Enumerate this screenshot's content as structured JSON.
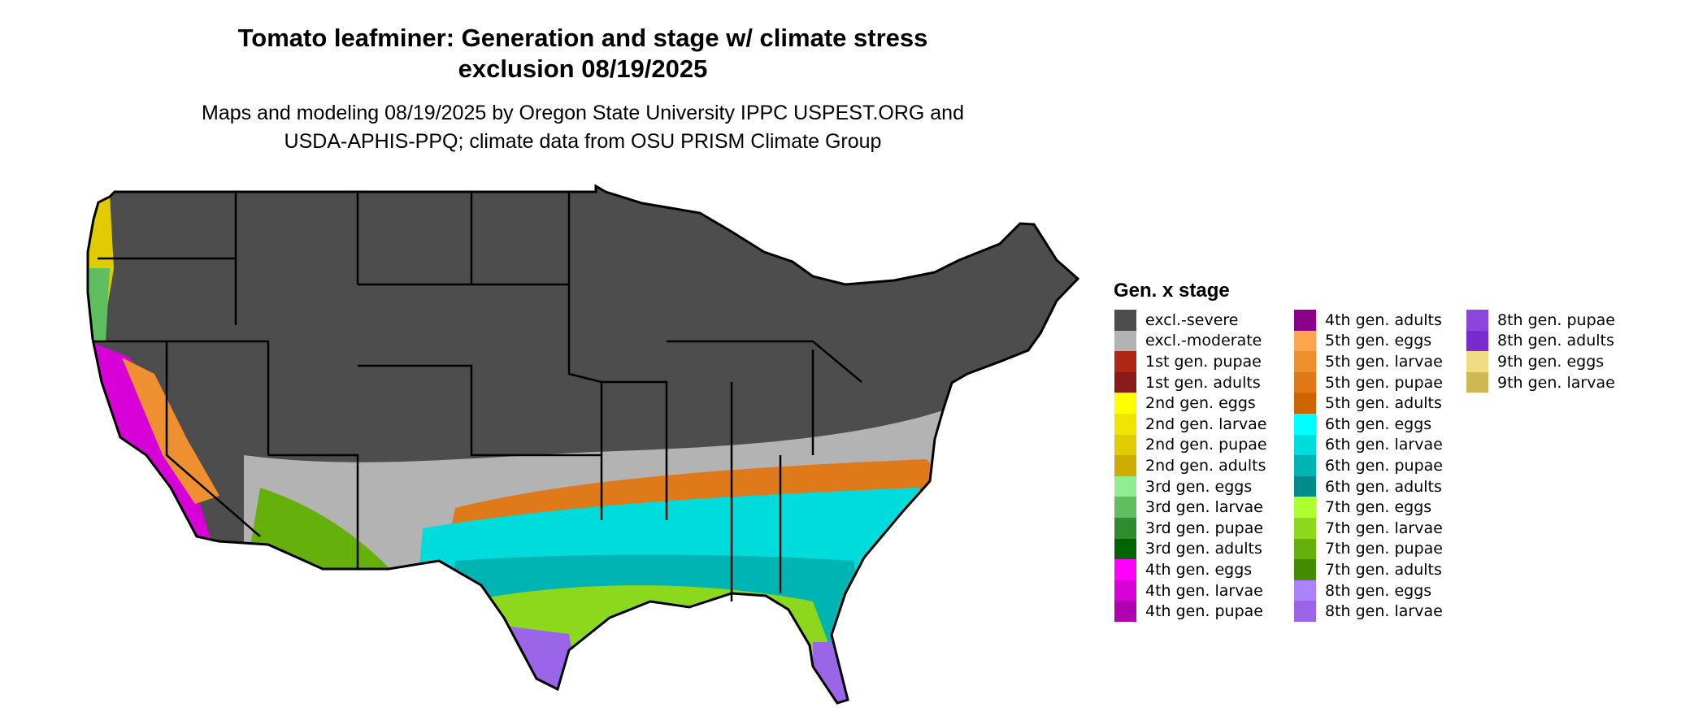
{
  "title_lines": [
    "Tomato leafminer: Generation and stage w/ climate stress",
    "exclusion 08/19/2025"
  ],
  "subtitle_lines": [
    "Maps and modeling 08/19/2025 by Oregon State University IPPC USPEST.ORG and",
    "USDA-APHIS-PPQ; climate data from OSU PRISM Climate Group"
  ],
  "legend": {
    "title": "Gen. x stage",
    "items": [
      {
        "label": "excl.-severe",
        "color": "#4d4d4d"
      },
      {
        "label": "excl.-moderate",
        "color": "#b3b3b3"
      },
      {
        "label": "1st gen. pupae",
        "color": "#b22614"
      },
      {
        "label": "1st gen. adults",
        "color": "#8b1a1a"
      },
      {
        "label": "2nd gen. eggs",
        "color": "#ffff00"
      },
      {
        "label": "2nd gen. larvae",
        "color": "#eee600"
      },
      {
        "label": "2nd gen. pupae",
        "color": "#e0cc00"
      },
      {
        "label": "2nd gen. adults",
        "color": "#cdad00"
      },
      {
        "label": "3rd gen. eggs",
        "color": "#90ee90"
      },
      {
        "label": "3rd gen. larvae",
        "color": "#5fbf5f"
      },
      {
        "label": "3rd gen. pupae",
        "color": "#2e8b2e"
      },
      {
        "label": "3rd gen. adults",
        "color": "#006400"
      },
      {
        "label": "4th gen. eggs",
        "color": "#ff00ff"
      },
      {
        "label": "4th gen. larvae",
        "color": "#d700d7"
      },
      {
        "label": "4th gen. pupae",
        "color": "#b000b0"
      },
      {
        "label": "4th gen. adults",
        "color": "#8b008b"
      },
      {
        "label": "5th gen. eggs",
        "color": "#ffa54f"
      },
      {
        "label": "5th gen. larvae",
        "color": "#ee9030"
      },
      {
        "label": "5th gen. pupae",
        "color": "#df7a1a"
      },
      {
        "label": "5th gen. adults",
        "color": "#cd6600"
      },
      {
        "label": "6th gen. eggs",
        "color": "#00ffff"
      },
      {
        "label": "6th gen. larvae",
        "color": "#00dcdc"
      },
      {
        "label": "6th gen. pupae",
        "color": "#00b4b4"
      },
      {
        "label": "6th gen. adults",
        "color": "#008b8b"
      },
      {
        "label": "7th gen. eggs",
        "color": "#adff2f"
      },
      {
        "label": "7th gen. larvae",
        "color": "#8cd81c"
      },
      {
        "label": "7th gen. pupae",
        "color": "#66b00c"
      },
      {
        "label": "7th gen. adults",
        "color": "#458b00"
      },
      {
        "label": "8th gen. eggs",
        "color": "#ab82ff"
      },
      {
        "label": "8th gen. larvae",
        "color": "#9b65ea"
      },
      {
        "label": "8th gen. pupae",
        "color": "#8b47dc"
      },
      {
        "label": "8th gen. adults",
        "color": "#7a2bd0"
      },
      {
        "label": "9th gen. eggs",
        "color": "#eedd82"
      },
      {
        "label": "9th gen. larvae",
        "color": "#cdb852"
      }
    ]
  }
}
